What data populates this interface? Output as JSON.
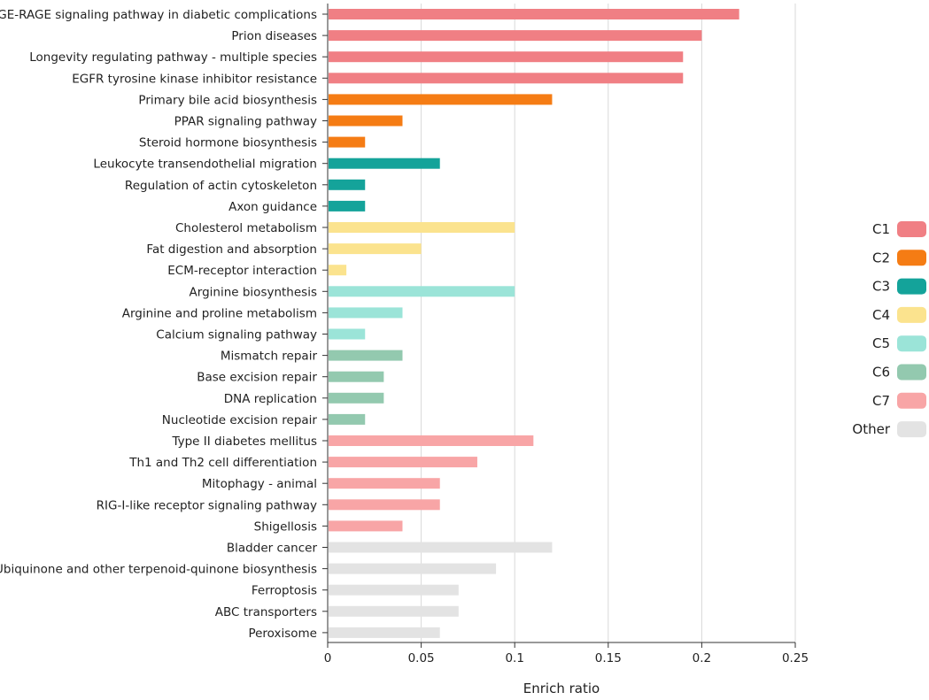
{
  "chart_data": {
    "type": "bar",
    "orientation": "horizontal",
    "title": "",
    "xlabel": "Enrich ratio",
    "ylabel": "",
    "xlim": [
      0,
      0.25
    ],
    "x_ticks": [
      "0",
      "0.05",
      "0.1",
      "0.15",
      "0.2",
      "0.25"
    ],
    "grid": "vertical",
    "legend_position": "right",
    "legend": [
      {
        "name": "C1",
        "color": "#F07F84"
      },
      {
        "name": "C2",
        "color": "#F57C14"
      },
      {
        "name": "C3",
        "color": "#14A39A"
      },
      {
        "name": "C4",
        "color": "#FBE38E"
      },
      {
        "name": "C5",
        "color": "#9BE4D8"
      },
      {
        "name": "C6",
        "color": "#93C9AF"
      },
      {
        "name": "C7",
        "color": "#F8A5A6"
      },
      {
        "name": "Other",
        "color": "#E3E3E3"
      }
    ],
    "bars": [
      {
        "label": "AGE-RAGE signaling pathway in diabetic complications",
        "value": 0.22,
        "group": "C1"
      },
      {
        "label": "Prion diseases",
        "value": 0.2,
        "group": "C1"
      },
      {
        "label": "Longevity regulating pathway - multiple species",
        "value": 0.19,
        "group": "C1"
      },
      {
        "label": "EGFR tyrosine kinase inhibitor resistance",
        "value": 0.19,
        "group": "C1"
      },
      {
        "label": "Primary bile acid biosynthesis",
        "value": 0.12,
        "group": "C2"
      },
      {
        "label": "PPAR signaling pathway",
        "value": 0.04,
        "group": "C2"
      },
      {
        "label": "Steroid hormone biosynthesis",
        "value": 0.02,
        "group": "C2"
      },
      {
        "label": "Leukocyte transendothelial migration",
        "value": 0.06,
        "group": "C3"
      },
      {
        "label": "Regulation of actin cytoskeleton",
        "value": 0.02,
        "group": "C3"
      },
      {
        "label": "Axon guidance",
        "value": 0.02,
        "group": "C3"
      },
      {
        "label": "Cholesterol metabolism",
        "value": 0.1,
        "group": "C4"
      },
      {
        "label": "Fat digestion and absorption",
        "value": 0.05,
        "group": "C4"
      },
      {
        "label": "ECM-receptor interaction",
        "value": 0.01,
        "group": "C4"
      },
      {
        "label": "Arginine biosynthesis",
        "value": 0.1,
        "group": "C5"
      },
      {
        "label": "Arginine and proline metabolism",
        "value": 0.04,
        "group": "C5"
      },
      {
        "label": "Calcium signaling pathway",
        "value": 0.02,
        "group": "C5"
      },
      {
        "label": "Mismatch repair",
        "value": 0.04,
        "group": "C6"
      },
      {
        "label": "Base excision repair",
        "value": 0.03,
        "group": "C6"
      },
      {
        "label": "DNA replication",
        "value": 0.03,
        "group": "C6"
      },
      {
        "label": "Nucleotide excision repair",
        "value": 0.02,
        "group": "C6"
      },
      {
        "label": "Type II diabetes mellitus",
        "value": 0.11,
        "group": "C7"
      },
      {
        "label": "Th1 and Th2 cell differentiation",
        "value": 0.08,
        "group": "C7"
      },
      {
        "label": "Mitophagy - animal",
        "value": 0.06,
        "group": "C7"
      },
      {
        "label": "RIG-I-like receptor signaling pathway",
        "value": 0.06,
        "group": "C7"
      },
      {
        "label": "Shigellosis",
        "value": 0.04,
        "group": "C7"
      },
      {
        "label": "Bladder cancer",
        "value": 0.12,
        "group": "Other"
      },
      {
        "label": "Ubiquinone and other terpenoid-quinone biosynthesis",
        "value": 0.09,
        "group": "Other"
      },
      {
        "label": "Ferroptosis",
        "value": 0.07,
        "group": "Other"
      },
      {
        "label": "ABC transporters",
        "value": 0.07,
        "group": "Other"
      },
      {
        "label": "Peroxisome",
        "value": 0.06,
        "group": "Other"
      }
    ]
  }
}
